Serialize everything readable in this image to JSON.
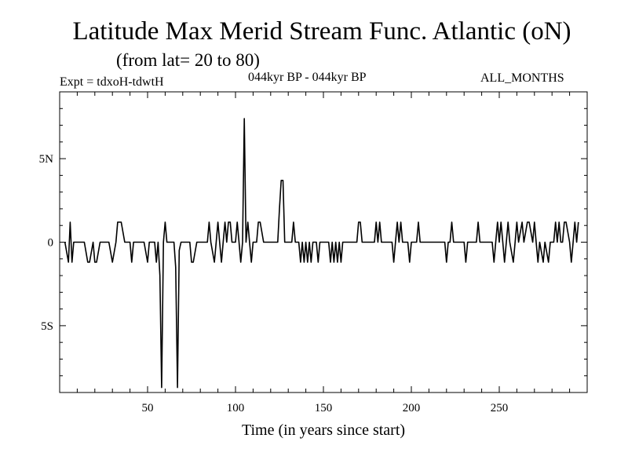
{
  "header": {
    "title": "Latitude Max Merid Stream Func. Atlantic (oN)",
    "subtitle": "(from lat= 20 to 80)",
    "experiment": "Expt = tdxoH-tdwtH",
    "period": "044kyr BP - 044kyr BP",
    "months": "ALL_MONTHS"
  },
  "chart_data": {
    "type": "line",
    "title": "Latitude Max Merid Stream Func. Atlantic (oN)",
    "xlabel": "Time (in years since start)",
    "ylabel": "",
    "xlim": [
      0,
      300
    ],
    "ylim": [
      -9,
      9
    ],
    "grid": false,
    "x_ticks": [
      50,
      100,
      150,
      200,
      250
    ],
    "y_ticks": [
      {
        "value": 5,
        "label": "5N"
      },
      {
        "value": 0,
        "label": "0"
      },
      {
        "value": -5,
        "label": "5S"
      }
    ],
    "series": [
      {
        "color": "#000000",
        "points": [
          [
            3,
            0
          ],
          [
            5,
            -1.2
          ],
          [
            6,
            1.2
          ],
          [
            7,
            -1.2
          ],
          [
            8,
            0
          ],
          [
            14,
            0
          ],
          [
            16,
            -1.2
          ],
          [
            17,
            -1.2
          ],
          [
            19,
            0
          ],
          [
            20,
            -1.2
          ],
          [
            21,
            -1.2
          ],
          [
            23,
            0
          ],
          [
            28,
            0
          ],
          [
            30,
            -1.2
          ],
          [
            32,
            0
          ],
          [
            33,
            1.2
          ],
          [
            35,
            1.2
          ],
          [
            37,
            0
          ],
          [
            40,
            0
          ],
          [
            41,
            -1.2
          ],
          [
            42,
            0
          ],
          [
            48,
            0
          ],
          [
            50,
            -1.2
          ],
          [
            51,
            0
          ],
          [
            54,
            0
          ],
          [
            55,
            -1.2
          ],
          [
            56,
            0
          ],
          [
            57,
            -2
          ],
          [
            58,
            -8.7
          ],
          [
            59,
            0
          ],
          [
            60,
            1.2
          ],
          [
            61,
            0
          ],
          [
            65,
            0
          ],
          [
            66,
            -1.5
          ],
          [
            67,
            -8.7
          ],
          [
            68,
            -0.5
          ],
          [
            69,
            0
          ],
          [
            74,
            0
          ],
          [
            75,
            -1.2
          ],
          [
            76,
            -1.2
          ],
          [
            78,
            0
          ],
          [
            84,
            0
          ],
          [
            85,
            1.2
          ],
          [
            86,
            0
          ],
          [
            88,
            -1.2
          ],
          [
            89,
            0
          ],
          [
            90,
            1.2
          ],
          [
            91,
            0
          ],
          [
            92,
            -1.2
          ],
          [
            93,
            0
          ],
          [
            94,
            1.2
          ],
          [
            95,
            0
          ],
          [
            96,
            1.2
          ],
          [
            97,
            1.2
          ],
          [
            98,
            0
          ],
          [
            100,
            0
          ],
          [
            101,
            1.2
          ],
          [
            102,
            0
          ],
          [
            103,
            -1.2
          ],
          [
            104,
            0
          ],
          [
            105,
            7.4
          ],
          [
            106,
            0
          ],
          [
            107,
            1.2
          ],
          [
            108,
            0
          ],
          [
            109,
            -1.2
          ],
          [
            110,
            0
          ],
          [
            112,
            0
          ],
          [
            113,
            1.2
          ],
          [
            114,
            1.2
          ],
          [
            116,
            0
          ],
          [
            124,
            0
          ],
          [
            125,
            2
          ],
          [
            126,
            3.7
          ],
          [
            127,
            3.7
          ],
          [
            128,
            0
          ],
          [
            132,
            0
          ],
          [
            133,
            1.2
          ],
          [
            134,
            0
          ],
          [
            136,
            0
          ],
          [
            137,
            -1.2
          ],
          [
            138,
            0
          ],
          [
            139,
            -1.2
          ],
          [
            140,
            0
          ],
          [
            141,
            -1.2
          ],
          [
            142,
            0
          ],
          [
            143,
            -1.2
          ],
          [
            144,
            0
          ],
          [
            146,
            0
          ],
          [
            147,
            -1.2
          ],
          [
            148,
            0
          ],
          [
            153,
            0
          ],
          [
            154,
            -1.2
          ],
          [
            155,
            0
          ],
          [
            156,
            -1.2
          ],
          [
            157,
            0
          ],
          [
            158,
            -1.2
          ],
          [
            159,
            0
          ],
          [
            160,
            -1.2
          ],
          [
            161,
            0
          ],
          [
            169,
            0
          ],
          [
            170,
            1.2
          ],
          [
            171,
            1.2
          ],
          [
            172,
            0
          ],
          [
            179,
            0
          ],
          [
            180,
            1.2
          ],
          [
            181,
            0
          ],
          [
            182,
            1.2
          ],
          [
            183,
            0
          ],
          [
            189,
            0
          ],
          [
            190,
            -1.2
          ],
          [
            191,
            0
          ],
          [
            192,
            1.2
          ],
          [
            193,
            0
          ],
          [
            194,
            1.2
          ],
          [
            195,
            0
          ],
          [
            198,
            0
          ],
          [
            199,
            -1.2
          ],
          [
            200,
            0
          ],
          [
            203,
            0
          ],
          [
            204,
            1.2
          ],
          [
            205,
            0
          ],
          [
            219,
            0
          ],
          [
            220,
            -1.2
          ],
          [
            221,
            0
          ],
          [
            222,
            0
          ],
          [
            223,
            1.2
          ],
          [
            224,
            0
          ],
          [
            230,
            0
          ],
          [
            231,
            -1.2
          ],
          [
            232,
            0
          ],
          [
            237,
            0
          ],
          [
            238,
            1.2
          ],
          [
            239,
            0
          ],
          [
            246,
            0
          ],
          [
            247,
            -1.2
          ],
          [
            248,
            0
          ],
          [
            249,
            1.2
          ],
          [
            250,
            0
          ],
          [
            251,
            1.2
          ],
          [
            252,
            0
          ],
          [
            253,
            -1.2
          ],
          [
            254,
            0
          ],
          [
            255,
            1.2
          ],
          [
            256,
            0
          ],
          [
            258,
            -1.2
          ],
          [
            259,
            0
          ],
          [
            260,
            1.2
          ],
          [
            261,
            0
          ],
          [
            263,
            1.2
          ],
          [
            264,
            0
          ],
          [
            266,
            1.2
          ],
          [
            267,
            1.2
          ],
          [
            269,
            0
          ],
          [
            270,
            1.2
          ],
          [
            271,
            0
          ],
          [
            272,
            -1.2
          ],
          [
            273,
            0
          ],
          [
            275,
            -1.2
          ],
          [
            276,
            0
          ],
          [
            278,
            -1.2
          ],
          [
            279,
            0
          ],
          [
            281,
            0
          ],
          [
            282,
            1.2
          ],
          [
            283,
            0
          ],
          [
            284,
            1.2
          ],
          [
            285,
            0
          ],
          [
            286,
            0
          ],
          [
            287,
            1.2
          ],
          [
            288,
            1.2
          ],
          [
            290,
            0
          ],
          [
            291,
            -1.2
          ],
          [
            292,
            0
          ],
          [
            293,
            1.2
          ],
          [
            294,
            0
          ],
          [
            295,
            1.2
          ]
        ]
      }
    ]
  }
}
